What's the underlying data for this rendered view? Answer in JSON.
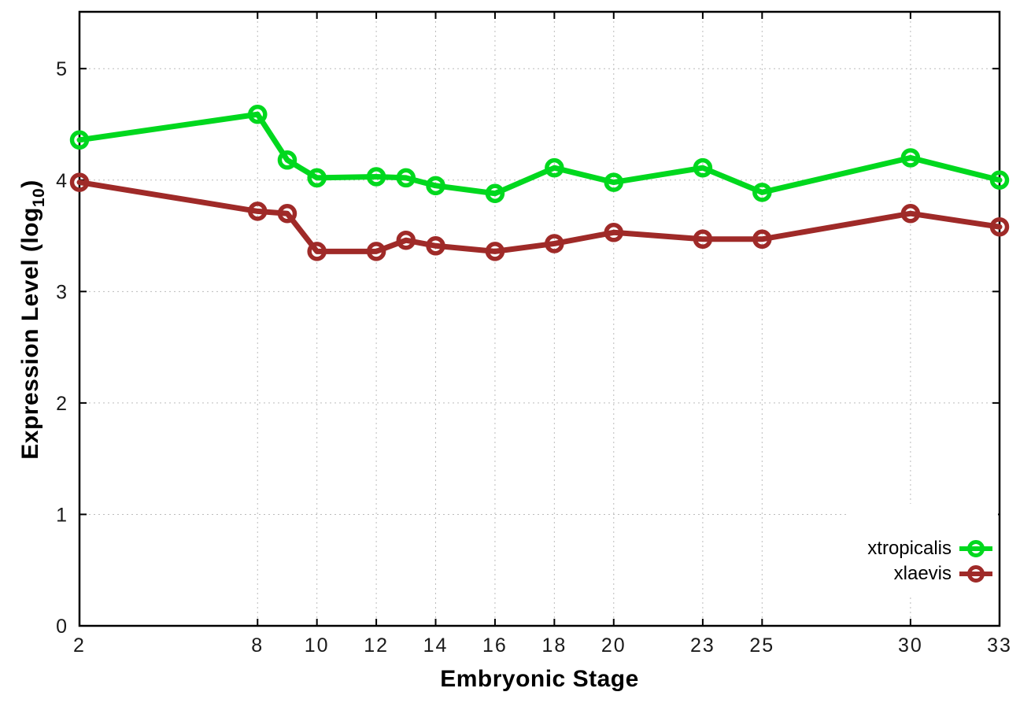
{
  "figure": {
    "background": "#ffffff"
  },
  "axes": {
    "x_label": "Embryonic Stage",
    "y_label_prefix": "Expression Level (log",
    "y_label_sub": "10",
    "y_label_suffix": ")"
  },
  "colors": {
    "axis_border": "#000000",
    "grid": "#bcbcbc",
    "tick_label": "#1a1a1a",
    "xtropicalis": "#00d81e",
    "xlaevis": "#9f2a28"
  },
  "chart_data": {
    "type": "line",
    "title": "",
    "xlabel": "Embryonic Stage",
    "ylabel": "Expression Level (log10)",
    "x": [
      2,
      8,
      9,
      10,
      12,
      13,
      14,
      16,
      18,
      20,
      23,
      25,
      30,
      33
    ],
    "series": [
      {
        "name": "xtropicalis",
        "color": "#00d81e",
        "values": [
          4.36,
          4.59,
          4.18,
          4.02,
          4.03,
          4.02,
          3.95,
          3.88,
          4.11,
          3.98,
          4.11,
          3.89,
          4.2,
          4.0
        ]
      },
      {
        "name": "xlaevis",
        "color": "#9f2a28",
        "values": [
          3.98,
          3.72,
          3.7,
          3.36,
          3.36,
          3.46,
          3.41,
          3.36,
          3.43,
          3.53,
          3.47,
          3.47,
          3.7,
          3.58
        ]
      }
    ],
    "x_ticks": [
      2,
      8,
      10,
      12,
      14,
      16,
      18,
      20,
      23,
      25,
      30,
      33
    ],
    "y_ticks": [
      0,
      1,
      2,
      3,
      4,
      5
    ],
    "xlim": [
      2,
      33
    ],
    "ylim": [
      0,
      5.51
    ],
    "grid": true,
    "marker": "open-circle",
    "legend_position": "bottom-right"
  }
}
